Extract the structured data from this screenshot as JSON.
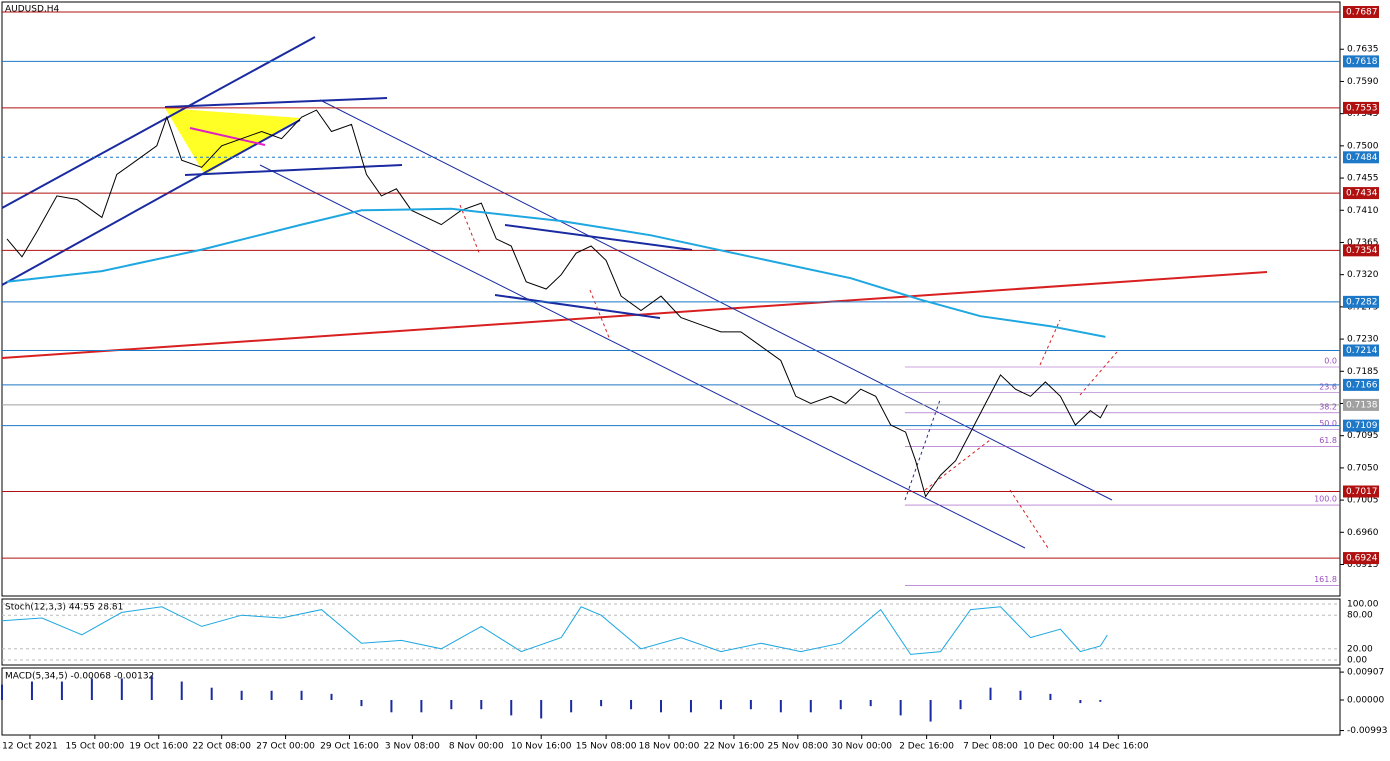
{
  "chart_data": {
    "type": "line",
    "title": "AUDUSD,H4",
    "xlim": [
      0,
      1340
    ],
    "ylim": [
      0.6871,
      0.7701
    ],
    "xticks": [
      {
        "value": 28,
        "label": "12 Oct 2021"
      },
      {
        "value": 93,
        "label": "15 Oct 00:00"
      },
      {
        "value": 157,
        "label": "19 Oct 16:00"
      },
      {
        "value": 220,
        "label": "22 Oct 08:00"
      },
      {
        "value": 284,
        "label": "27 Oct 00:00"
      },
      {
        "value": 348,
        "label": "29 Oct 16:00"
      },
      {
        "value": 411,
        "label": "3 Nov 08:00"
      },
      {
        "value": 475,
        "label": "8 Nov 00:00"
      },
      {
        "value": 540,
        "label": "10 Nov 16:00"
      },
      {
        "value": 605,
        "label": "15 Nov 08:00"
      },
      {
        "value": 668,
        "label": "18 Nov 00:00"
      },
      {
        "value": 733,
        "label": "22 Nov 16:00"
      },
      {
        "value": 797,
        "label": "25 Nov 08:00"
      },
      {
        "value": 861,
        "label": "30 Nov 00:00"
      },
      {
        "value": 926,
        "label": "2 Dec 16:00"
      },
      {
        "value": 990,
        "label": "7 Dec 08:00"
      },
      {
        "value": 1053,
        "label": "10 Dec 00:00"
      },
      {
        "value": 1118,
        "label": "14 Dec 16:00"
      }
    ],
    "yticks": [
      {
        "value": 0.7635,
        "label": "0.7635"
      },
      {
        "value": 0.759,
        "label": "0.7590"
      },
      {
        "value": 0.7545,
        "label": "0.7545"
      },
      {
        "value": 0.75,
        "label": "0.7500"
      },
      {
        "value": 0.7455,
        "label": "0.7455"
      },
      {
        "value": 0.741,
        "label": "0.7410"
      },
      {
        "value": 0.7365,
        "label": "0.7365"
      },
      {
        "value": 0.732,
        "label": "0.7320"
      },
      {
        "value": 0.7275,
        "label": "0.7275"
      },
      {
        "value": 0.723,
        "label": "0.7230"
      },
      {
        "value": 0.7185,
        "label": "0.7185"
      },
      {
        "value": 0.714,
        "label": "0.7140"
      },
      {
        "value": 0.7095,
        "label": "0.7095"
      },
      {
        "value": 0.705,
        "label": "0.7050"
      },
      {
        "value": 0.7005,
        "label": "0.7005"
      },
      {
        "value": 0.696,
        "label": "0.6960"
      },
      {
        "value": 0.6915,
        "label": "0.6915"
      }
    ],
    "series": [
      {
        "name": "AUDUSD",
        "color": "#000000",
        "x": [
          5,
          20,
          35,
          55,
          75,
          100,
          115,
          135,
          155,
          165,
          180,
          200,
          220,
          240,
          260,
          280,
          300,
          315,
          330,
          350,
          365,
          380,
          395,
          410,
          425,
          440,
          460,
          480,
          495,
          510,
          525,
          545,
          560,
          575,
          590,
          605,
          620,
          640,
          660,
          680,
          700,
          720,
          740,
          760,
          780,
          795,
          810,
          830,
          845,
          860,
          875,
          890,
          905,
          915,
          925,
          940,
          955,
          970,
          985,
          1000,
          1015,
          1030,
          1045,
          1060,
          1075,
          1090,
          1100,
          1107
        ],
        "values": [
          0.737,
          0.7345,
          0.738,
          0.743,
          0.7425,
          0.74,
          0.746,
          0.748,
          0.75,
          0.754,
          0.748,
          0.747,
          0.75,
          0.751,
          0.752,
          0.751,
          0.754,
          0.755,
          0.752,
          0.753,
          0.746,
          0.743,
          0.744,
          0.741,
          0.74,
          0.739,
          0.741,
          0.742,
          0.737,
          0.736,
          0.731,
          0.73,
          0.732,
          0.735,
          0.736,
          0.734,
          0.729,
          0.727,
          0.729,
          0.726,
          0.725,
          0.724,
          0.724,
          0.722,
          0.72,
          0.715,
          0.714,
          0.715,
          0.714,
          0.716,
          0.715,
          0.711,
          0.71,
          0.706,
          0.701,
          0.704,
          0.706,
          0.71,
          0.714,
          0.718,
          0.716,
          0.715,
          0.717,
          0.715,
          0.711,
          0.713,
          0.712,
          0.7138
        ]
      },
      {
        "name": "MA",
        "color": "#1ea7e0",
        "x": [
          5,
          100,
          200,
          300,
          360,
          450,
          560,
          650,
          750,
          850,
          920,
          980,
          1050,
          1105
        ],
        "values": [
          0.731,
          0.7325,
          0.7355,
          0.739,
          0.741,
          0.7412,
          0.7395,
          0.7375,
          0.7345,
          0.7315,
          0.7285,
          0.7262,
          0.7248,
          0.7233
        ]
      }
    ],
    "levels": [
      {
        "value": 0.7687,
        "color": "#b01010"
      },
      {
        "value": 0.7618,
        "color": "#1e78c8"
      },
      {
        "value": 0.7553,
        "color": "#b01010"
      },
      {
        "value": 0.7484,
        "color": "#1e78c8"
      },
      {
        "value": 0.7434,
        "color": "#b01010"
      },
      {
        "value": 0.7354,
        "color": "#b01010"
      },
      {
        "value": 0.7282,
        "color": "#1e78c8"
      },
      {
        "value": 0.7214,
        "color": "#1e78c8"
      },
      {
        "value": 0.7166,
        "color": "#1e78c8"
      },
      {
        "value": 0.7138,
        "color": "#a0a0a0"
      },
      {
        "value": 0.7109,
        "color": "#1e78c8"
      },
      {
        "value": 0.7017,
        "color": "#b01010"
      },
      {
        "value": 0.6924,
        "color": "#b01010"
      }
    ],
    "fib": [
      {
        "label": "0.0",
        "value": 0.7191
      },
      {
        "label": "23.6",
        "value": 0.7155
      },
      {
        "label": "38.2",
        "value": 0.7127
      },
      {
        "label": "50.0",
        "value": 0.7104
      },
      {
        "label": "61.8",
        "value": 0.708
      },
      {
        "label": "100.0",
        "value": 0.6998
      },
      {
        "label": "161.8",
        "value": 0.6886
      }
    ],
    "stoch": {
      "label": "Stoch(12,3,3) 44.55 28.81",
      "ylim": [
        0,
        100
      ],
      "yticks": [
        {
          "value": 100,
          "label": "100.00"
        },
        {
          "value": 80,
          "label": "80.00"
        },
        {
          "value": 20,
          "label": "20.00"
        },
        {
          "value": 0,
          "label": "0.00"
        }
      ],
      "x": [
        0,
        40,
        80,
        120,
        160,
        200,
        240,
        280,
        320,
        360,
        400,
        440,
        480,
        520,
        560,
        580,
        600,
        640,
        680,
        720,
        760,
        800,
        840,
        880,
        910,
        940,
        970,
        1000,
        1030,
        1060,
        1080,
        1100,
        1107
      ],
      "values": [
        70,
        75,
        45,
        85,
        95,
        60,
        80,
        75,
        90,
        30,
        35,
        20,
        60,
        15,
        40,
        95,
        80,
        20,
        40,
        15,
        30,
        15,
        30,
        90,
        10,
        15,
        90,
        95,
        40,
        55,
        15,
        25,
        44.55
      ]
    },
    "macd": {
      "label": "MACD(5,34,5) -0.00068 -0.00132",
      "ylim": [
        -0.0104,
        0.0104
      ],
      "yticks": [
        {
          "value": 0.00907,
          "label": "0.00907"
        },
        {
          "value": 0,
          "label": "0.00000"
        },
        {
          "value": -0.00993,
          "label": "-0.00993"
        }
      ],
      "x": [
        0,
        30,
        60,
        90,
        120,
        150,
        180,
        210,
        240,
        270,
        300,
        330,
        360,
        390,
        420,
        450,
        480,
        510,
        540,
        570,
        600,
        630,
        660,
        690,
        720,
        750,
        780,
        810,
        840,
        870,
        900,
        930,
        960,
        990,
        1020,
        1050,
        1080,
        1100
      ],
      "values": [
        0.005,
        0.006,
        0.006,
        0.007,
        0.007,
        0.008,
        0.006,
        0.004,
        0.003,
        0.003,
        0.003,
        0.002,
        -0.002,
        -0.004,
        -0.004,
        -0.003,
        -0.003,
        -0.005,
        -0.006,
        -0.004,
        -0.002,
        -0.003,
        -0.004,
        -0.004,
        -0.003,
        -0.003,
        -0.004,
        -0.004,
        -0.003,
        -0.002,
        -0.005,
        -0.007,
        -0.003,
        0.004,
        0.003,
        0.002,
        -0.001,
        -0.0006
      ]
    }
  }
}
